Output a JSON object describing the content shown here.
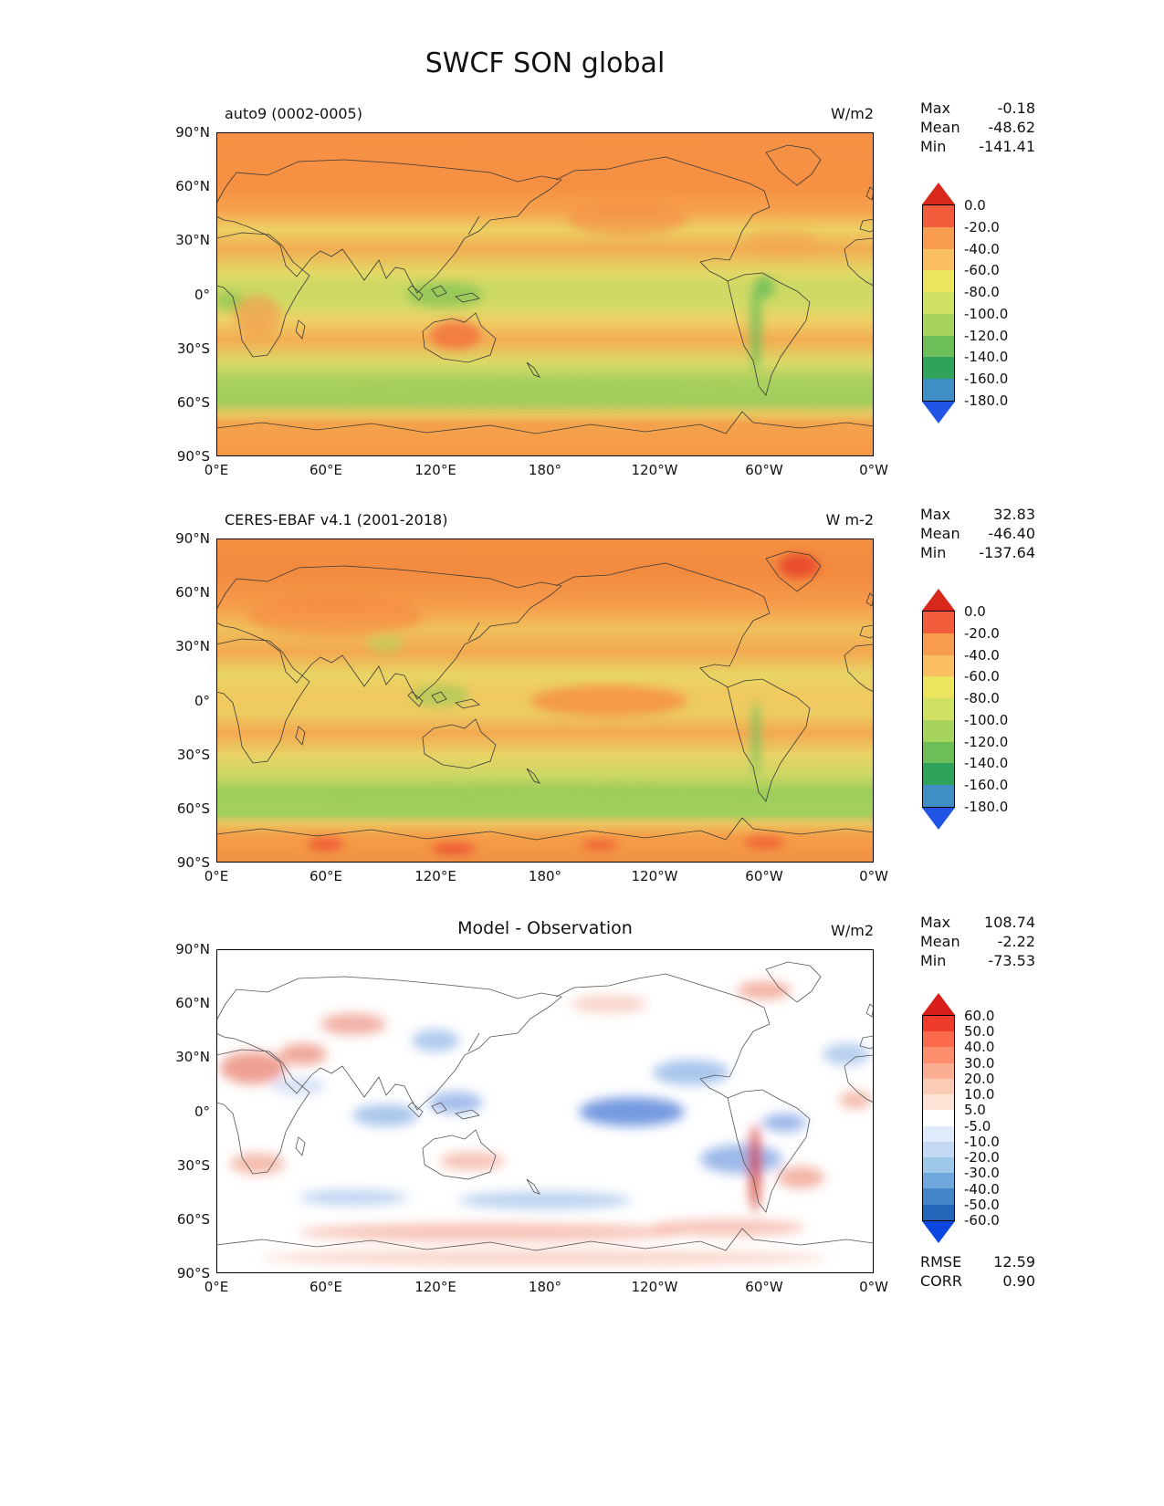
{
  "title": "SWCF SON global",
  "panels": [
    {
      "name": "model",
      "title": "auto9 (0002-0005)",
      "units": "W/m2",
      "stats": [
        {
          "label": "Max",
          "value": "-0.18"
        },
        {
          "label": "Mean",
          "value": "-48.62"
        },
        {
          "label": "Min",
          "value": "-141.41"
        }
      ],
      "yticks": [
        "90°N",
        "60°N",
        "30°N",
        "0°",
        "30°S",
        "60°S",
        "90°S"
      ],
      "xticks": [
        "0°E",
        "60°E",
        "120°E",
        "180°",
        "120°W",
        "60°W",
        "0°W"
      ],
      "colorbar": {
        "labels": [
          "0.0",
          "-20.0",
          "-40.0",
          "-60.0",
          "-80.0",
          "-100.0",
          "-120.0",
          "-140.0",
          "-160.0",
          "-180.0"
        ],
        "segment_colors": [
          "#f25c3a",
          "#f89c4f",
          "#fbbf63",
          "#ece45f",
          "#cfe063",
          "#a6d45c",
          "#6cbe59",
          "#2fa35c",
          "#3f8fc5"
        ],
        "arrow_top": "#d8281c",
        "arrow_bottom": "#2255e6"
      }
    },
    {
      "name": "observation",
      "title": "CERES-EBAF v4.1 (2001-2018)",
      "units": "W m-2",
      "stats": [
        {
          "label": "Max",
          "value": "32.83"
        },
        {
          "label": "Mean",
          "value": "-46.40"
        },
        {
          "label": "Min",
          "value": "-137.64"
        }
      ],
      "yticks": [
        "90°N",
        "60°N",
        "30°N",
        "0°",
        "30°S",
        "60°S",
        "90°S"
      ],
      "xticks": [
        "0°E",
        "60°E",
        "120°E",
        "180°",
        "120°W",
        "60°W",
        "0°W"
      ],
      "colorbar": {
        "labels": [
          "0.0",
          "-20.0",
          "-40.0",
          "-60.0",
          "-80.0",
          "-100.0",
          "-120.0",
          "-140.0",
          "-160.0",
          "-180.0"
        ],
        "segment_colors": [
          "#f25c3a",
          "#f89c4f",
          "#fbbf63",
          "#ece45f",
          "#cfe063",
          "#a6d45c",
          "#6cbe59",
          "#2fa35c",
          "#3f8fc5"
        ],
        "arrow_top": "#d8281c",
        "arrow_bottom": "#2255e6"
      }
    },
    {
      "name": "difference",
      "title": "Model - Observation",
      "units": "W/m2",
      "stats": [
        {
          "label": "Max",
          "value": "108.74"
        },
        {
          "label": "Mean",
          "value": "-2.22"
        },
        {
          "label": "Min",
          "value": "-73.53"
        }
      ],
      "extra": [
        {
          "label": "RMSE",
          "value": "12.59"
        },
        {
          "label": "CORR",
          "value": "0.90"
        }
      ],
      "yticks": [
        "90°N",
        "60°N",
        "30°N",
        "0°",
        "30°S",
        "60°S",
        "90°S"
      ],
      "xticks": [
        "0°E",
        "60°E",
        "120°E",
        "180°",
        "120°W",
        "60°W",
        "0°W"
      ],
      "colorbar": {
        "labels": [
          "60.0",
          "50.0",
          "40.0",
          "30.0",
          "20.0",
          "10.0",
          "5.0",
          "-5.0",
          "-10.0",
          "-20.0",
          "-30.0",
          "-40.0",
          "-50.0",
          "-60.0"
        ],
        "segment_colors": [
          "#ef3b2c",
          "#fb6a4a",
          "#fc8e6e",
          "#fcae93",
          "#fccbb5",
          "#fde2d5",
          "#ffffff",
          "#dfeafa",
          "#c3d8f2",
          "#9ec8e8",
          "#6fa8dc",
          "#4285c9",
          "#2166b8"
        ],
        "arrow_top": "#d81e1a",
        "arrow_bottom": "#0b46e0"
      }
    }
  ],
  "chart_data": [
    {
      "type": "heatmap",
      "variable": "SWCF",
      "season": "SON",
      "region": "global",
      "title": "auto9 (0002-0005)",
      "units": "W/m2",
      "stats": {
        "max": -0.18,
        "mean": -48.62,
        "min": -141.41
      },
      "contour_levels": [
        0,
        -20,
        -40,
        -60,
        -80,
        -100,
        -120,
        -140,
        -160,
        -180
      ],
      "lat_ticks": [
        90,
        60,
        30,
        0,
        -30,
        -60,
        -90
      ],
      "lon_tick_labels": [
        "0°E",
        "60°E",
        "120°E",
        "180°",
        "120°W",
        "60°W",
        "0°W"
      ],
      "colormap": "red-orange-yellow-green-blue (WBGYR reversed)"
    },
    {
      "type": "heatmap",
      "variable": "SWCF",
      "season": "SON",
      "region": "global",
      "title": "CERES-EBAF v4.1 (2001-2018)",
      "units": "W m-2",
      "stats": {
        "max": 32.83,
        "mean": -46.4,
        "min": -137.64
      },
      "contour_levels": [
        0,
        -20,
        -40,
        -60,
        -80,
        -100,
        -120,
        -140,
        -160,
        -180
      ],
      "lat_ticks": [
        90,
        60,
        30,
        0,
        -30,
        -60,
        -90
      ],
      "lon_tick_labels": [
        "0°E",
        "60°E",
        "120°E",
        "180°",
        "120°W",
        "60°W",
        "0°W"
      ],
      "colormap": "red-orange-yellow-green-blue (WBGYR reversed)"
    },
    {
      "type": "heatmap",
      "variable": "SWCF difference",
      "season": "SON",
      "region": "global",
      "title": "Model - Observation",
      "units": "W/m2",
      "stats": {
        "max": 108.74,
        "mean": -2.22,
        "min": -73.53,
        "rmse": 12.59,
        "corr": 0.9
      },
      "contour_levels": [
        60,
        50,
        40,
        30,
        20,
        10,
        5,
        -5,
        -10,
        -20,
        -30,
        -40,
        -50,
        -60
      ],
      "lat_ticks": [
        90,
        60,
        30,
        0,
        -30,
        -60,
        -90
      ],
      "lon_tick_labels": [
        "0°E",
        "60°E",
        "120°E",
        "180°",
        "120°W",
        "60°W",
        "0°W"
      ],
      "colormap": "blue-white-red diverging"
    }
  ]
}
